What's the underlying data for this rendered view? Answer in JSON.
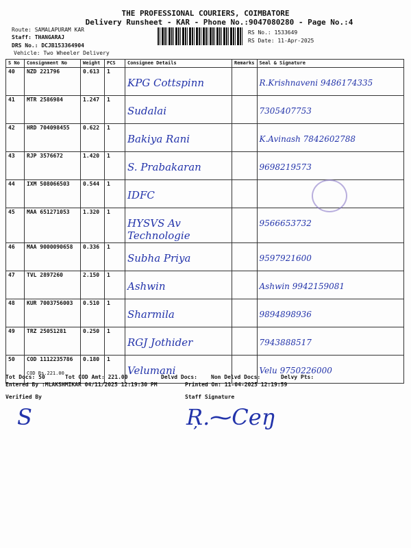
{
  "header": {
    "company": "THE PROFESSIONAL COURIERS, COIMBATORE",
    "subtitle": "Delivery Runsheet - KAR - Phone No.:9047080280 - Page No.:4",
    "route": "Route: SAMALAPURAM KAR",
    "staff": "Staff: THANGARAJ",
    "drs": "DRS No.: DCJB153364904",
    "vehicle": "Vehicle: Two Wheeler Delivery",
    "rs_no": "RS No.: 1533649",
    "rs_date": "RS Date: 11-Apr-2025"
  },
  "columns": [
    "S No",
    "Consignment No",
    "Weight",
    "PCS",
    "Consignee Details",
    "Remarks",
    "Seal & Signature"
  ],
  "rows": [
    {
      "sno": "40",
      "cn": "NZD 221796",
      "weight": "0.613",
      "pcs": "1",
      "consignee": "KPG Cottspinn",
      "signature": "R.Krishnaveni 9486174335"
    },
    {
      "sno": "41",
      "cn": "MTR 2586984",
      "weight": "1.247",
      "pcs": "1",
      "consignee": "Sudalai",
      "signature": "7305407753"
    },
    {
      "sno": "42",
      "cn": "HRD 704098455",
      "weight": "0.622",
      "pcs": "1",
      "consignee": "Bakiya Rani",
      "signature": "K.Avinash 7842602788"
    },
    {
      "sno": "43",
      "cn": "RJP 3576672",
      "weight": "1.420",
      "pcs": "1",
      "consignee": "S. Prabakaran",
      "signature": "9698219573"
    },
    {
      "sno": "44",
      "cn": "IXM 508066503",
      "weight": "0.544",
      "pcs": "1",
      "consignee": "IDFC",
      "signature": ""
    },
    {
      "sno": "45",
      "cn": "MAA 651271053",
      "weight": "1.320",
      "pcs": "1",
      "consignee": "HYSVS Av Technologie",
      "signature": "9566653732"
    },
    {
      "sno": "46",
      "cn": "MAA 9000090658",
      "weight": "0.336",
      "pcs": "1",
      "consignee": "Subha Priya",
      "signature": "9597921600"
    },
    {
      "sno": "47",
      "cn": "TVL 2897260",
      "weight": "2.150",
      "pcs": "1",
      "consignee": "Ashwin",
      "signature": "Ashwin 9942159081"
    },
    {
      "sno": "48",
      "cn": "KUR 7003756003",
      "weight": "0.510",
      "pcs": "1",
      "consignee": "Sharmila",
      "signature": "9894898936"
    },
    {
      "sno": "49",
      "cn": "TRZ 25051281",
      "weight": "0.250",
      "pcs": "1",
      "consignee": "RGJ Jothider",
      "signature": "7943888517"
    },
    {
      "sno": "50",
      "cn": "COD 1112235786",
      "weight": "0.180",
      "pcs": "1",
      "consignee": "Velumani",
      "signature": "Velu 9750226000",
      "cod_note": "COD Rs.221.00"
    }
  ],
  "footer": {
    "tot_docs": "Tot Docs:  50",
    "tot_cod": "Tot COD Amt:  221.00",
    "delvd": "Delvd Docs:",
    "non_delvd": "Non Delvd Docs:",
    "delvy_pts": "Delvy Pts:",
    "entered_by": "Entered By :MLAKSHMIKAR 04/11/2025 12:19:30 PM",
    "printed_on": "Printed On: 11-04-2025 12:19:59",
    "verified_by": "Verified By",
    "staff_signature": "Staff Signature"
  }
}
